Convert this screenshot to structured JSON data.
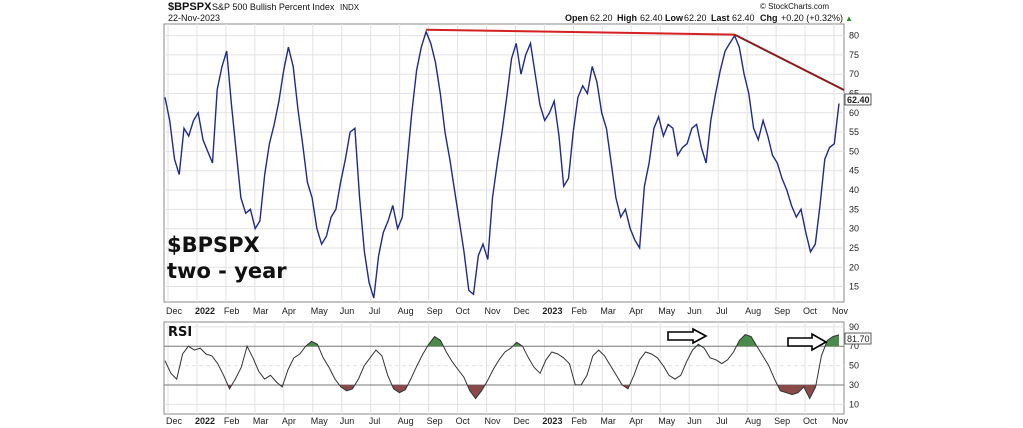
{
  "header": {
    "symbol": "$BPSPX",
    "description": "S&P 500 Bullish Percent Index",
    "exchange": "INDX",
    "date": "22-Nov-2023",
    "watermark": "© StockCharts.com",
    "ohlc": {
      "open_label": "Open",
      "open": "62.20",
      "high_label": "High",
      "high": "62.40",
      "low_label": "Low",
      "low": "62.20",
      "last_label": "Last",
      "last": "62.40",
      "chg_label": "Chg",
      "chg": "+0.20 (+0.32%)"
    },
    "chg_arrow": "▲"
  },
  "annotation": {
    "line1": "$BPSPX",
    "line2": "two - year"
  },
  "rsi_panel_label": "RSI",
  "colors": {
    "price_line": "#1f2a8a",
    "trendline_flat": "#d42020",
    "trendline_down": "#8b1a1a",
    "rsi_line": "#333333",
    "rsi_overbought_fill": "#4a8a4a",
    "rsi_oversold_fill": "#8a4a4a",
    "grid": "#e2e2e2",
    "tag_bg": "#ffffff"
  },
  "chart_data": [
    {
      "type": "line",
      "panel": "price",
      "series_name": "$BPSPX",
      "y_ticks": [
        15,
        20,
        25,
        30,
        35,
        40,
        45,
        50,
        55,
        60,
        65,
        70,
        75,
        80
      ],
      "ylim": [
        11,
        83
      ],
      "x_ticks": [
        "Dec",
        "2022",
        "Feb",
        "Mar",
        "Apr",
        "May",
        "Jun",
        "Jul",
        "Aug",
        "Sep",
        "Oct",
        "Nov",
        "Dec",
        "2023",
        "Feb",
        "Mar",
        "Apr",
        "May",
        "Jun",
        "Jul",
        "Aug",
        "Sep",
        "Oct",
        "Nov"
      ],
      "x_tick_bold": [
        "2022",
        "2023"
      ],
      "last_value_label": "62.40",
      "values": [
        64,
        58,
        48,
        44,
        56,
        54,
        58,
        60,
        53,
        50,
        47,
        66,
        72,
        76,
        62,
        50,
        38,
        34,
        35,
        30,
        32,
        44,
        52,
        57,
        63,
        71,
        77,
        72,
        61,
        52,
        42,
        38,
        30,
        26,
        28,
        33,
        35,
        42,
        48,
        55,
        56,
        38,
        24,
        16,
        12,
        23,
        29,
        32,
        36,
        30,
        33,
        47,
        60,
        71,
        77,
        81,
        78,
        73,
        65,
        55,
        48,
        40,
        32,
        24,
        14,
        13,
        23,
        26,
        22,
        38,
        47,
        55,
        64,
        74,
        78,
        70,
        75,
        78,
        70,
        62,
        58,
        60,
        63,
        54,
        41,
        43,
        55,
        64,
        67,
        65,
        72,
        68,
        60,
        56,
        47,
        38,
        33,
        35,
        30,
        27,
        25,
        41,
        47,
        56,
        59,
        54,
        57,
        56,
        49,
        51,
        52,
        56,
        57,
        51,
        47,
        58,
        65,
        71,
        76,
        78,
        80,
        77,
        70,
        65,
        56,
        53,
        58,
        54,
        49,
        47,
        43,
        40,
        36,
        33,
        35,
        29,
        24,
        26,
        36,
        48,
        51,
        52,
        62.4
      ]
    },
    {
      "type": "line",
      "panel": "indicator",
      "series_name": "RSI",
      "y_ticks": [
        10,
        30,
        50,
        70,
        90
      ],
      "ylim": [
        0,
        95
      ],
      "overbought": 70,
      "oversold": 30,
      "last_value_label": "81.70",
      "values": [
        55,
        42,
        36,
        62,
        70,
        66,
        68,
        62,
        60,
        52,
        40,
        26,
        36,
        48,
        70,
        58,
        44,
        36,
        40,
        33,
        28,
        46,
        58,
        62,
        70,
        75,
        72,
        58,
        48,
        36,
        28,
        24,
        26,
        36,
        50,
        58,
        66,
        60,
        40,
        26,
        22,
        25,
        37,
        50,
        62,
        72,
        80,
        76,
        64,
        54,
        46,
        38,
        24,
        16,
        24,
        34,
        46,
        56,
        64,
        68,
        74,
        70,
        58,
        48,
        42,
        56,
        64,
        62,
        58,
        52,
        30,
        30,
        40,
        60,
        66,
        60,
        50,
        40,
        30,
        26,
        40,
        56,
        64,
        62,
        58,
        50,
        40,
        36,
        40,
        54,
        66,
        72,
        68,
        58,
        56,
        52,
        56,
        64,
        76,
        82,
        80,
        70,
        60,
        50,
        36,
        24,
        22,
        20,
        22,
        28,
        16,
        28,
        60,
        76,
        80,
        81.7
      ],
      "arrows": [
        "near Jul peak",
        "at last value"
      ]
    }
  ]
}
